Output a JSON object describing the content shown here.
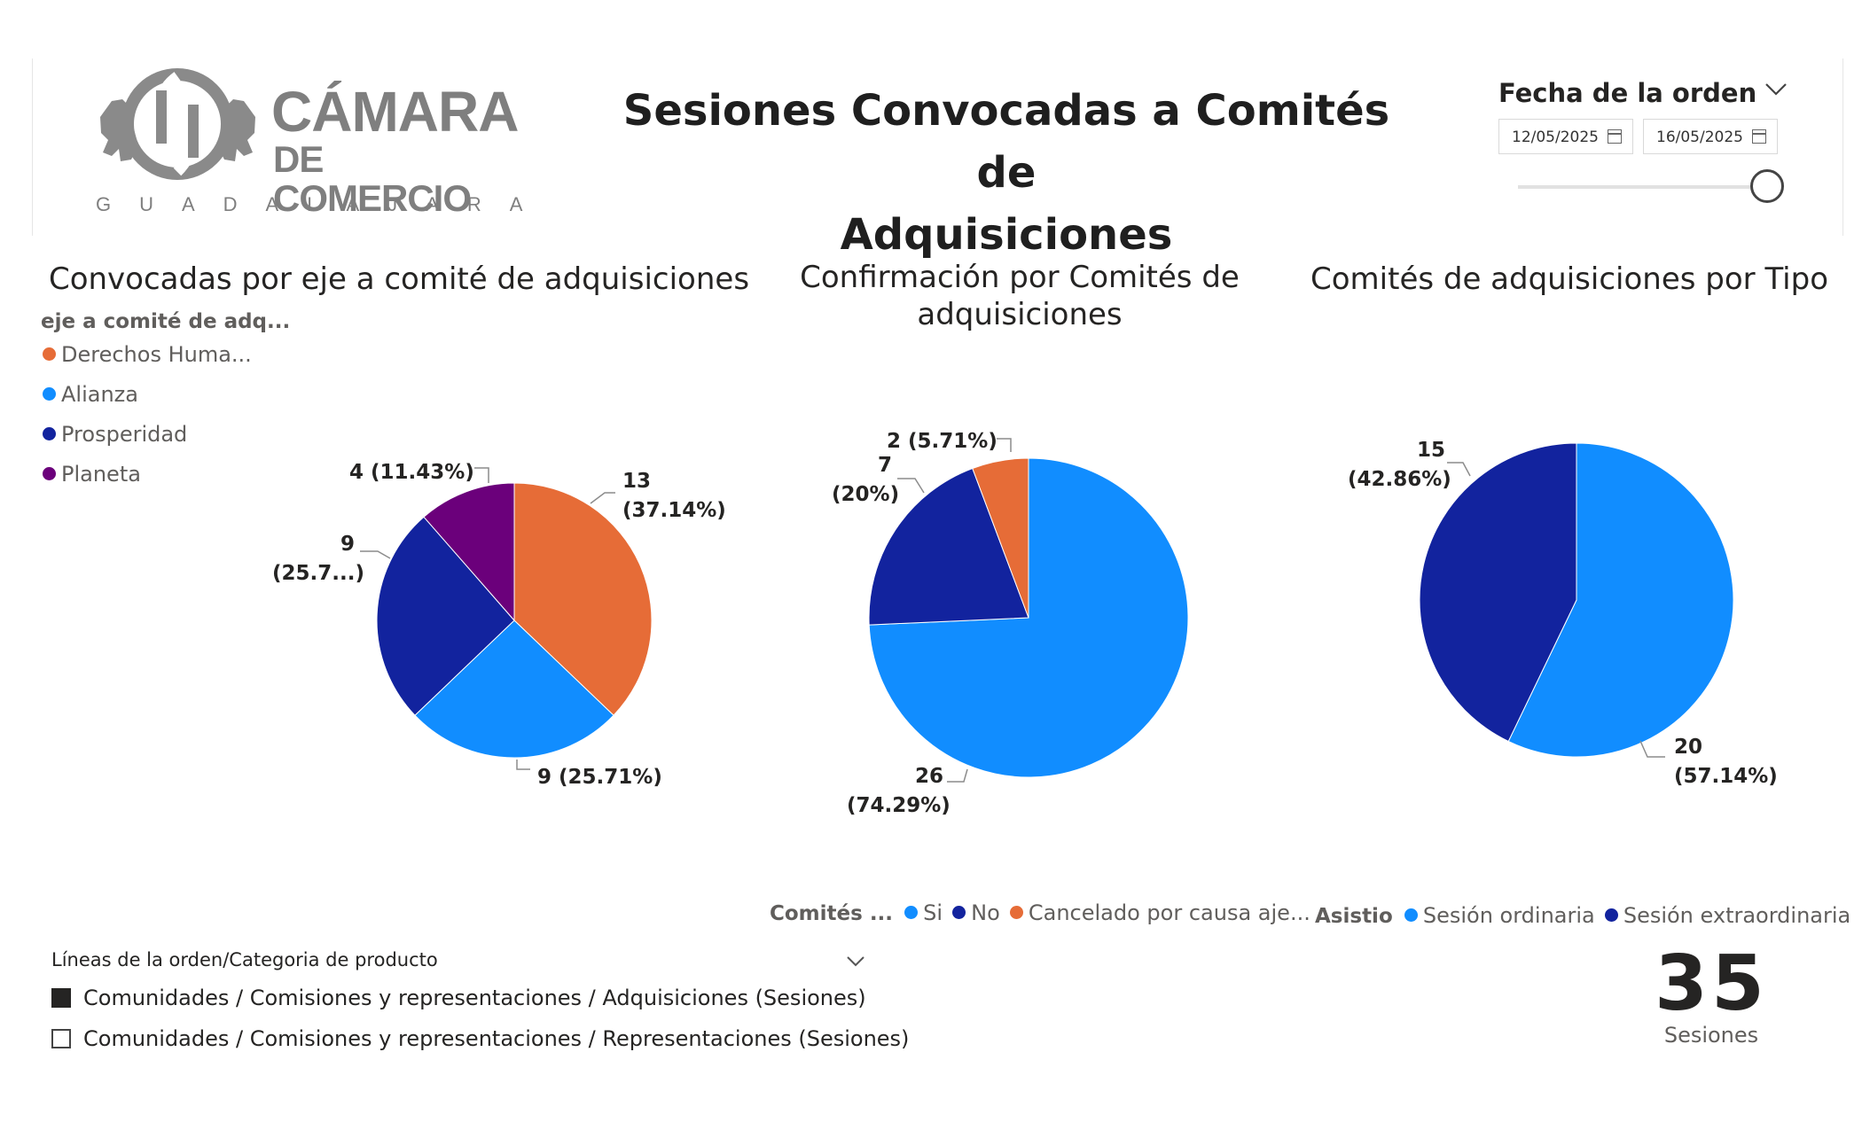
{
  "header": {
    "logo": {
      "line1": "CÁMARA",
      "line2": "DE COMERCIO",
      "city": "GUADALAJARA"
    },
    "title": "Sesiones Convocadas a Comités de Adquisiciones",
    "date_slicer": {
      "title": "Fecha de la orden",
      "start": "12/05/2025",
      "end": "16/05/2025"
    }
  },
  "colors": {
    "orange": "#e66c37",
    "light_blue": "#118dff",
    "dark_blue": "#12239e",
    "purple": "#6b007b"
  },
  "chart_data": [
    {
      "type": "pie",
      "title": "Convocadas por eje a comité de adquisiciones",
      "legend_title": "eje a comité de adq...",
      "legend_position": "top-left",
      "categories": [
        "Derechos Huma...",
        "Alianza",
        "Prosperidad",
        "Planeta"
      ],
      "values": [
        13,
        9,
        9,
        4
      ],
      "percents": [
        "37.14%",
        "25.71%",
        "25.7...",
        "11.43%"
      ],
      "colors": [
        "#e66c37",
        "#118dff",
        "#12239e",
        "#6b007b"
      ]
    },
    {
      "type": "pie",
      "title": "Confirmación por Comités de adquisiciones",
      "legend_title": "Comités ...",
      "legend_position": "bottom",
      "categories": [
        "Si",
        "No",
        "Cancelado por causa aje..."
      ],
      "values": [
        26,
        7,
        2
      ],
      "percents": [
        "74.29%",
        "20%",
        "5.71%"
      ],
      "colors": [
        "#118dff",
        "#12239e",
        "#e66c37"
      ]
    },
    {
      "type": "pie",
      "title": "Comités de adquisiciones por Tipo",
      "legend_title": "Asistio",
      "legend_position": "bottom",
      "categories": [
        "Sesión ordinaria",
        "Sesión extraordinaria"
      ],
      "values": [
        20,
        15
      ],
      "percents": [
        "57.14%",
        "42.86%"
      ],
      "colors": [
        "#118dff",
        "#12239e"
      ]
    }
  ],
  "category_filter": {
    "title": "Líneas de la orden/Categoria de producto",
    "options": [
      {
        "label": "Comunidades / Comisiones y representaciones / Adquisiciones (Sesiones)",
        "checked": true
      },
      {
        "label": "Comunidades / Comisiones y representaciones / Representaciones (Sesiones)",
        "checked": false
      }
    ]
  },
  "kpi": {
    "value": "35",
    "label": "Sesiones"
  }
}
